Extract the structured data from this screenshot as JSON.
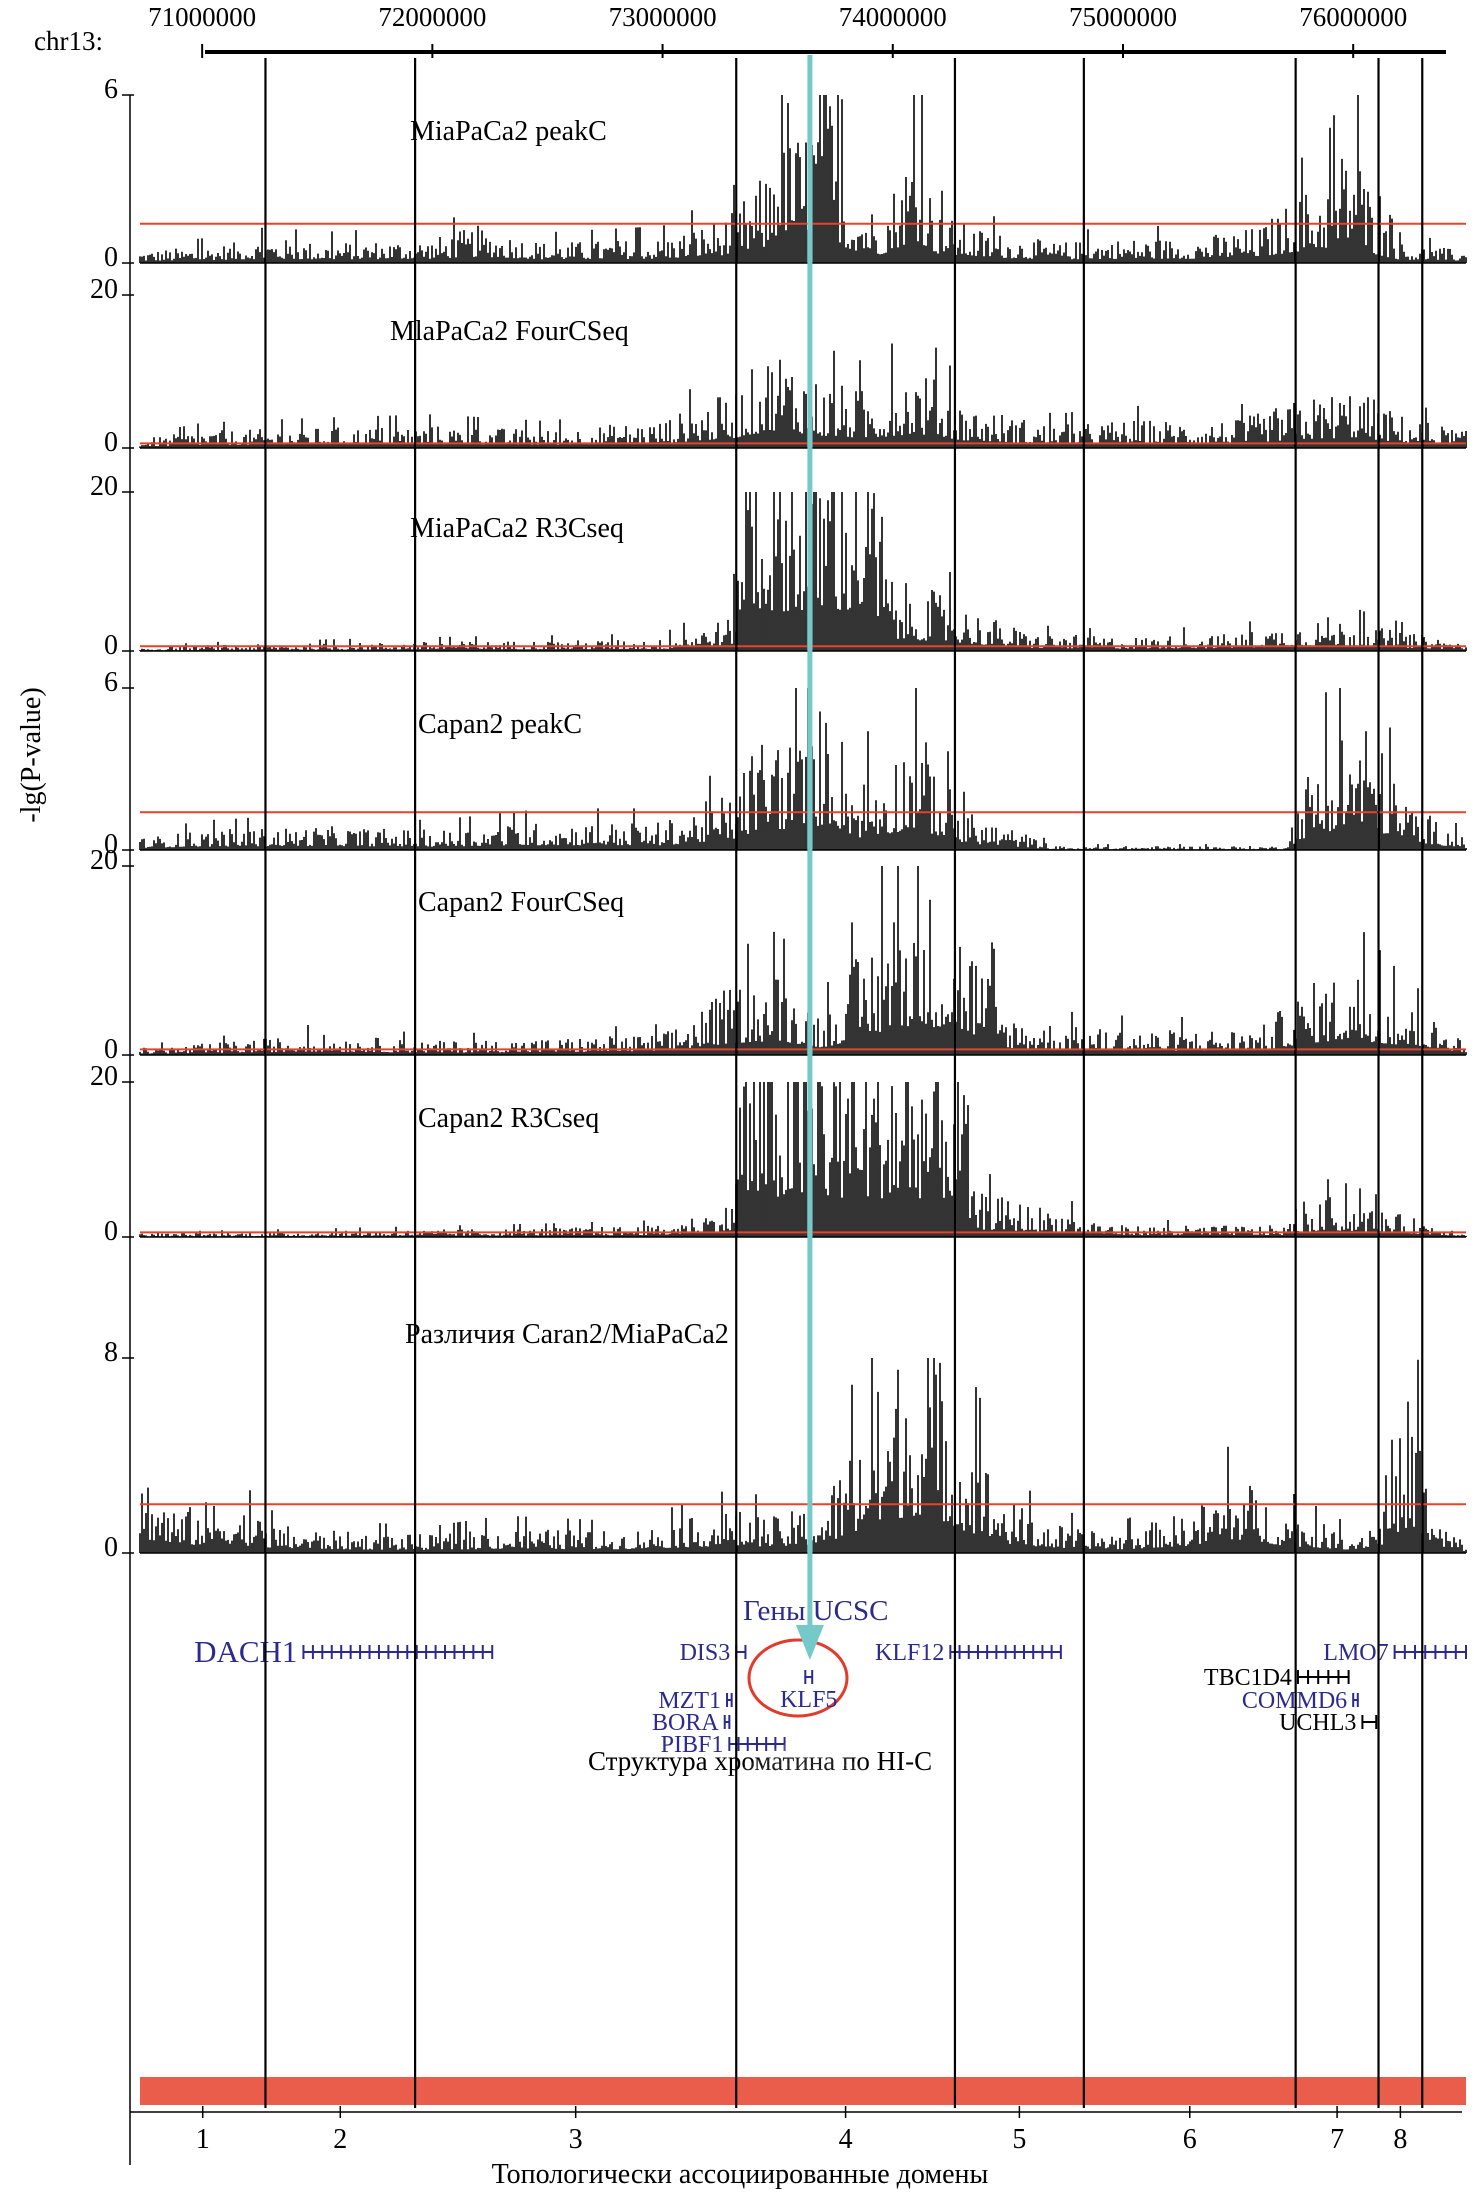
{
  "figure": {
    "chrom_label": "chr13:",
    "y_axis_label": "-lg(P-value)",
    "coordinate_ticks": [
      "71000000",
      "72000000",
      "73000000",
      "74000000",
      "75000000",
      "76000000"
    ],
    "genes_header": "Гены UCSC",
    "hic_title": "Структура хроматина по HI-C",
    "tad_axis_title": "Топологически ассоциированные домены",
    "tad_labels": [
      "1",
      "2",
      "3",
      "4",
      "5",
      "6",
      "7",
      "8"
    ]
  },
  "chart_data": {
    "type": "area",
    "x_unit": "bp on chr13",
    "x_range": [
      70730000,
      76490000
    ],
    "viewpoint_bp": 73640000,
    "tad_boundaries_bp": [
      71275000,
      71925000,
      73320000,
      74270000,
      74830000,
      75750000,
      76110000,
      76300000
    ],
    "tracks": [
      {
        "name": "MiaPaCa2 peakC",
        "ymax_label": "6",
        "ymin_label": "0",
        "ymax": 6,
        "threshold": 1.4,
        "profile": [
          [
            70730000,
            0.3
          ],
          [
            71000000,
            0.4
          ],
          [
            71300000,
            0.6
          ],
          [
            71500000,
            0.5
          ],
          [
            72000000,
            0.6
          ],
          [
            72200000,
            0.9
          ],
          [
            72500000,
            0.5
          ],
          [
            73000000,
            0.6
          ],
          [
            73300000,
            1.2
          ],
          [
            73450000,
            2.2
          ],
          [
            73520000,
            4.8
          ],
          [
            73600000,
            3.0
          ],
          [
            73700000,
            5.2
          ],
          [
            73800000,
            2.0
          ],
          [
            73950000,
            1.2
          ],
          [
            74100000,
            3.3
          ],
          [
            74200000,
            1.2
          ],
          [
            74400000,
            0.8
          ],
          [
            74700000,
            0.5
          ],
          [
            75000000,
            0.6
          ],
          [
            75300000,
            0.6
          ],
          [
            75600000,
            0.9
          ],
          [
            75750000,
            1.6
          ],
          [
            75900000,
            2.2
          ],
          [
            76000000,
            3.4
          ],
          [
            76100000,
            1.2
          ],
          [
            76200000,
            0.5
          ],
          [
            76490000,
            0.3
          ]
        ]
      },
      {
        "name": "MlaPaCa2 FourCSeq",
        "ymax_label": "20",
        "ymin_label": "0",
        "ymax": 20,
        "threshold": 0.6,
        "profile": [
          [
            70730000,
            0.8
          ],
          [
            71000000,
            1.5
          ],
          [
            71500000,
            1.8
          ],
          [
            72000000,
            2.0
          ],
          [
            72500000,
            1.6
          ],
          [
            73000000,
            2.5
          ],
          [
            73300000,
            5.0
          ],
          [
            73500000,
            9.5
          ],
          [
            73700000,
            6.0
          ],
          [
            73900000,
            5.0
          ],
          [
            74100000,
            7.5
          ],
          [
            74300000,
            4.0
          ],
          [
            74700000,
            2.0
          ],
          [
            75000000,
            2.5
          ],
          [
            75500000,
            2.5
          ],
          [
            75800000,
            4.5
          ],
          [
            76000000,
            5.5
          ],
          [
            76200000,
            3.0
          ],
          [
            76490000,
            1.5
          ]
        ]
      },
      {
        "name": "MiaPaCa2 R3Cseq",
        "ymax_label": "20",
        "ymin_label": "0",
        "ymax": 20,
        "threshold": 0.6,
        "profile": [
          [
            70730000,
            0.3
          ],
          [
            71000000,
            0.5
          ],
          [
            72000000,
            0.8
          ],
          [
            73000000,
            1.0
          ],
          [
            73300000,
            3.0
          ],
          [
            73350000,
            20.0
          ],
          [
            73900000,
            20.0
          ],
          [
            74000000,
            6.0
          ],
          [
            74200000,
            5.0
          ],
          [
            74350000,
            3.5
          ],
          [
            74600000,
            1.5
          ],
          [
            75000000,
            1.2
          ],
          [
            75500000,
            1.5
          ],
          [
            75900000,
            3.0
          ],
          [
            76100000,
            2.0
          ],
          [
            76490000,
            0.8
          ]
        ]
      },
      {
        "name": "Capan2 peakC",
        "ymax_label": "6",
        "ymin_label": "0",
        "ymax": 6,
        "threshold": 1.4,
        "profile": [
          [
            70730000,
            0.3
          ],
          [
            71000000,
            0.5
          ],
          [
            71500000,
            0.6
          ],
          [
            72000000,
            0.5
          ],
          [
            72500000,
            0.7
          ],
          [
            73000000,
            0.7
          ],
          [
            73300000,
            1.5
          ],
          [
            73450000,
            3.3
          ],
          [
            73600000,
            2.8
          ],
          [
            73720000,
            4.0
          ],
          [
            73850000,
            1.8
          ],
          [
            74000000,
            2.5
          ],
          [
            74100000,
            3.2
          ],
          [
            74300000,
            1.0
          ],
          [
            74500000,
            0.6
          ],
          [
            74700000,
            0.1
          ],
          [
            75700000,
            0.1
          ],
          [
            75800000,
            2.0
          ],
          [
            75950000,
            3.2
          ],
          [
            76050000,
            3.6
          ],
          [
            76200000,
            1.5
          ],
          [
            76350000,
            0.8
          ],
          [
            76490000,
            0.3
          ]
        ]
      },
      {
        "name": "Capan2 FourCSeq",
        "ymax_label": "20",
        "ymin_label": "0",
        "ymax": 20,
        "threshold": 0.6,
        "profile": [
          [
            70730000,
            0.5
          ],
          [
            71000000,
            0.8
          ],
          [
            71500000,
            1.5
          ],
          [
            72000000,
            1.0
          ],
          [
            72500000,
            1.2
          ],
          [
            73000000,
            1.5
          ],
          [
            73300000,
            5.0
          ],
          [
            73500000,
            6.0
          ],
          [
            73700000,
            3.0
          ],
          [
            73900000,
            8.5
          ],
          [
            74100000,
            13.0
          ],
          [
            74300000,
            10.0
          ],
          [
            74500000,
            3.0
          ],
          [
            74800000,
            2.0
          ],
          [
            75200000,
            1.8
          ],
          [
            75600000,
            2.0
          ],
          [
            75800000,
            5.0
          ],
          [
            76000000,
            6.5
          ],
          [
            76200000,
            4.0
          ],
          [
            76490000,
            1.2
          ]
        ]
      },
      {
        "name": "Capan2 R3Cseq",
        "ymax_label": "20",
        "ymin_label": "0",
        "ymax": 20,
        "threshold": 0.6,
        "profile": [
          [
            70730000,
            0.3
          ],
          [
            71500000,
            0.5
          ],
          [
            72500000,
            0.8
          ],
          [
            73000000,
            1.0
          ],
          [
            73300000,
            3.0
          ],
          [
            73350000,
            20.0
          ],
          [
            74300000,
            20.0
          ],
          [
            74350000,
            4.0
          ],
          [
            74700000,
            2.5
          ],
          [
            75000000,
            1.0
          ],
          [
            75700000,
            1.0
          ],
          [
            75900000,
            3.5
          ],
          [
            76100000,
            2.5
          ],
          [
            76490000,
            0.5
          ]
        ]
      },
      {
        "name": "Различия Caran2/MiaPaCa2",
        "ymax_label": "8",
        "ymin_label": "0",
        "ymax": 8,
        "threshold": 2.0,
        "profile": [
          [
            70730000,
            2.5
          ],
          [
            70900000,
            1.2
          ],
          [
            71100000,
            1.6
          ],
          [
            71300000,
            0.8
          ],
          [
            71600000,
            0.6
          ],
          [
            72000000,
            0.5
          ],
          [
            72300000,
            0.7
          ],
          [
            72800000,
            0.6
          ],
          [
            73000000,
            0.8
          ],
          [
            73300000,
            1.2
          ],
          [
            73500000,
            1.0
          ],
          [
            73700000,
            1.5
          ],
          [
            73850000,
            3.5
          ],
          [
            74000000,
            5.5
          ],
          [
            74150000,
            6.5
          ],
          [
            74300000,
            3.8
          ],
          [
            74500000,
            1.5
          ],
          [
            74700000,
            0.8
          ],
          [
            75000000,
            0.6
          ],
          [
            75300000,
            1.2
          ],
          [
            75500000,
            2.2
          ],
          [
            75700000,
            1.2
          ],
          [
            76000000,
            0.5
          ],
          [
            76150000,
            1.5
          ],
          [
            76250000,
            4.8
          ],
          [
            76350000,
            1.0
          ],
          [
            76490000,
            0.3
          ]
        ]
      }
    ],
    "genes": [
      {
        "name": "DACH1",
        "color": "#2b2b8f",
        "start": 71440000,
        "end": 72260000,
        "row": 0,
        "size": "large"
      },
      {
        "name": "DIS3",
        "color": "#2b2b8f",
        "start": 73320000,
        "end": 73360000,
        "row": 0
      },
      {
        "name": "KLF12",
        "color": "#2b2b8f",
        "start": 74250000,
        "end": 74730000,
        "row": 0
      },
      {
        "name": "LMO7",
        "color": "#2b2b8f",
        "start": 76180000,
        "end": 76490000,
        "row": 0
      },
      {
        "name": "KLF5",
        "color": "#2b2b8f",
        "start": 73620000,
        "end": 73650000,
        "row": 1
      },
      {
        "name": "TBC1D4",
        "color": "#000000",
        "start": 75760000,
        "end": 75980000,
        "row": 1
      },
      {
        "name": "MZT1",
        "color": "#2b2b8f",
        "start": 73280000,
        "end": 73300000,
        "row": 2
      },
      {
        "name": "COMMD6",
        "color": "#2b2b8f",
        "start": 76000000,
        "end": 76020000,
        "row": 2
      },
      {
        "name": "BORA",
        "color": "#2b2b8f",
        "start": 73270000,
        "end": 73290000,
        "row": 3
      },
      {
        "name": "UCHL3",
        "color": "#000000",
        "start": 76040000,
        "end": 76100000,
        "row": 3
      },
      {
        "name": "PIBF1",
        "color": "#2b2b8f",
        "start": 73290000,
        "end": 73530000,
        "row": 4
      }
    ],
    "colors": {
      "signal": "#000000",
      "threshold": "#e8412c",
      "viewpoint": "#76c9c9",
      "gene_highlight": "#e23b2b",
      "hic": "#e8412c"
    }
  }
}
